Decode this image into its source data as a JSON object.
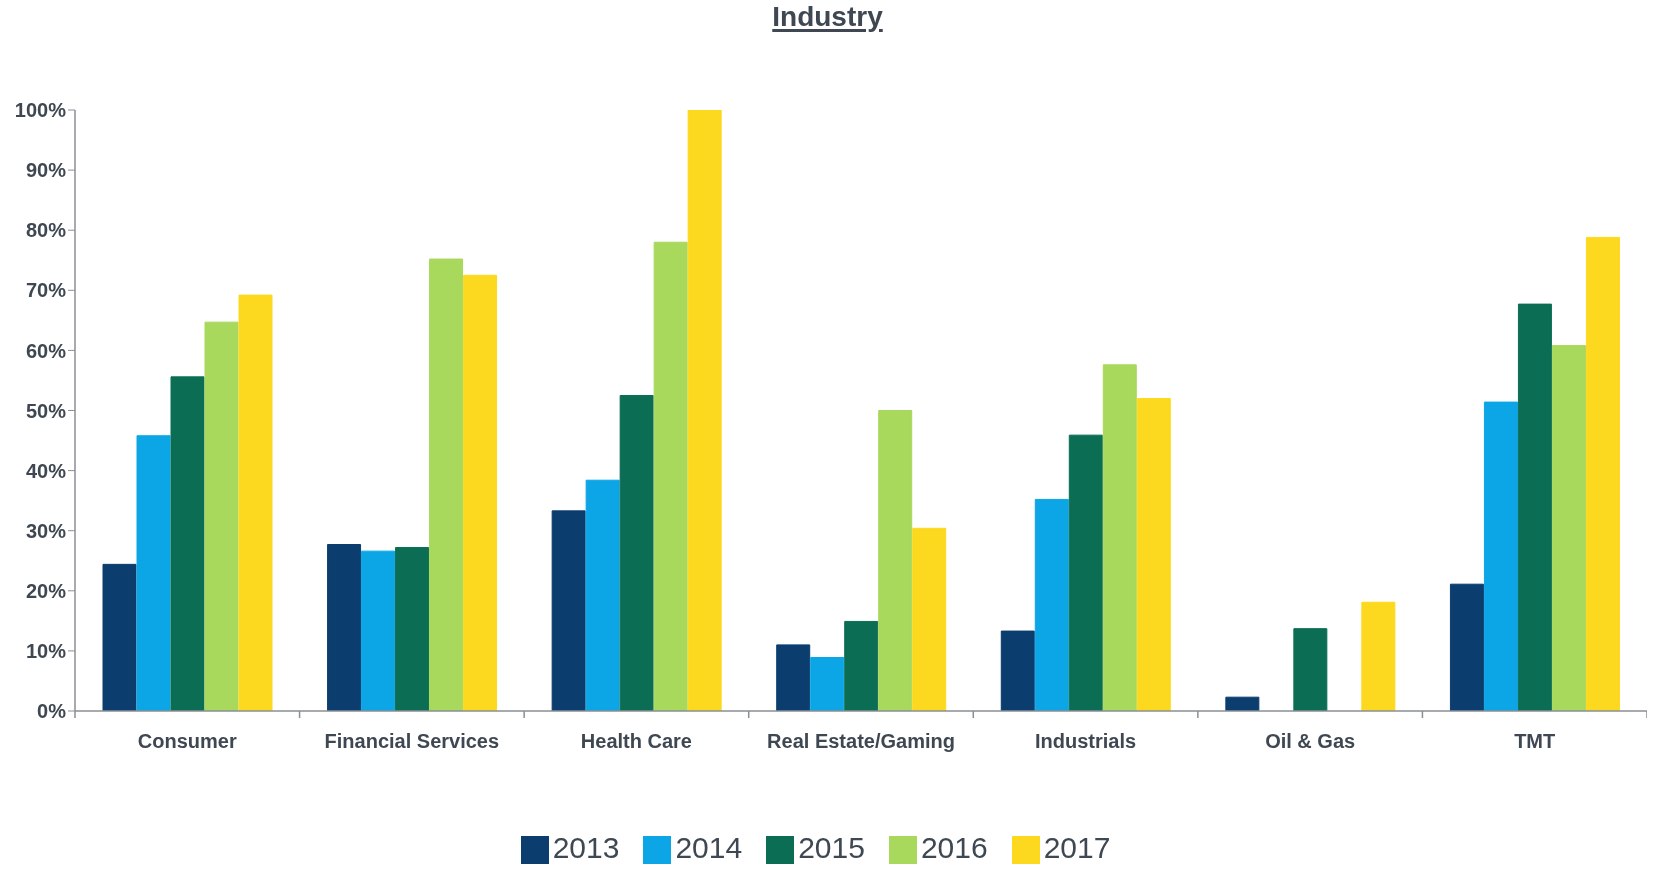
{
  "chart_data": {
    "type": "bar",
    "title": "Industry",
    "categories": [
      "Consumer",
      "Financial Services",
      "Health Care",
      "Real Estate/Gaming",
      "Industrials",
      "Oil & Gas",
      "TMT"
    ],
    "series": [
      {
        "name": "2013",
        "color": "#0b3d6e",
        "values": [
          24.4,
          27.7,
          33.3,
          11.0,
          13.3,
          2.3,
          21.1
        ]
      },
      {
        "name": "2014",
        "color": "#0ca6e6",
        "values": [
          45.8,
          26.6,
          38.4,
          8.9,
          35.2,
          null,
          51.4
        ]
      },
      {
        "name": "2015",
        "color": "#0b6e54",
        "values": [
          55.6,
          27.2,
          52.5,
          14.9,
          45.9,
          13.7,
          67.7
        ]
      },
      {
        "name": "2016",
        "color": "#a8d85c",
        "values": [
          64.7,
          75.2,
          78.0,
          50.0,
          57.6,
          null,
          60.8
        ]
      },
      {
        "name": "2017",
        "color": "#fcd91e",
        "values": [
          69.2,
          72.5,
          100.0,
          30.4,
          52.0,
          18.1,
          78.8
        ]
      }
    ],
    "ylim": [
      0,
      100
    ],
    "yticks": [
      {
        "value": 0,
        "label": "0%"
      },
      {
        "value": 10,
        "label": "10%"
      },
      {
        "value": 20,
        "label": "20%"
      },
      {
        "value": 30,
        "label": "30%"
      },
      {
        "value": 40,
        "label": "40%"
      },
      {
        "value": 50,
        "label": "50%"
      },
      {
        "value": 60,
        "label": "60%"
      },
      {
        "value": 70,
        "label": "70%"
      },
      {
        "value": 80,
        "label": "80%"
      },
      {
        "value": 90,
        "label": "90%"
      },
      {
        "value": 100,
        "label": "100%"
      }
    ],
    "legend": "bottom"
  }
}
